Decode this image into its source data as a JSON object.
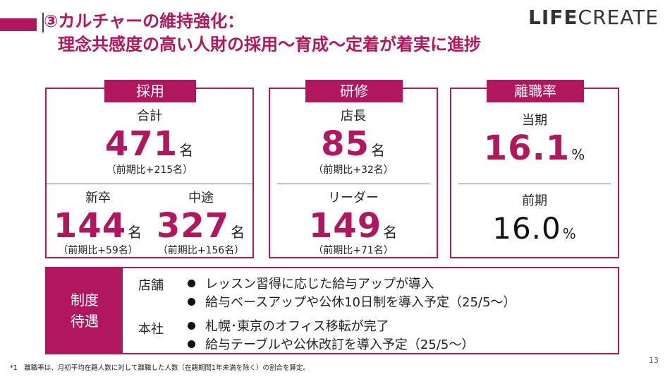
{
  "header": {
    "title_line1": "③カルチャーの維持強化：",
    "title_line2": "理念共感度の高い人財の採用～育成～定着が着実に進捗",
    "logo_left": "LIFE",
    "logo_right": "CREATE"
  },
  "hiring": {
    "tab": "採用",
    "total_label": "合計",
    "total_value": "471",
    "total_unit": "名",
    "total_change": "（前期比+215名）",
    "new_grad_label": "新卒",
    "new_grad_value": "144",
    "new_grad_unit": "名",
    "new_grad_change": "（前期比+59名）",
    "mid_career_label": "中途",
    "mid_career_value": "327",
    "mid_career_unit": "名",
    "mid_career_change": "（前期比+156名）"
  },
  "training": {
    "tab": "研修",
    "manager_label": "店長",
    "manager_value": "85",
    "manager_unit": "名",
    "manager_change": "（前期比+32名）",
    "leader_label": "リーダー",
    "leader_value": "149",
    "leader_unit": "名",
    "leader_change": "（前期比+71名）"
  },
  "turnover": {
    "tab": "離職率",
    "current_label": "当期",
    "current_value": "16.1",
    "current_unit": "%",
    "previous_label": "前期",
    "previous_value": "16.0",
    "previous_unit": "%"
  },
  "system": {
    "label_line1": "制度",
    "label_line2": "待遇",
    "stores_label": "店舗",
    "stores_items": [
      "レッスン習得に応じた給与アップが導入",
      "給与ベースアップや公休10日制を導入予定（25/5～）"
    ],
    "hq_label": "本社",
    "hq_items": [
      "札幌･東京のオフィス移転が完了",
      "給与テーブルや公休改訂を導入予定（25/5～）"
    ]
  },
  "footnote": "*1　離職率は、月初平均在籍人数に対して離職した人数（在籍期間1年未満を除く）の割合を算定。",
  "page_number": "13",
  "colors": {
    "accent": "#b0175f"
  }
}
